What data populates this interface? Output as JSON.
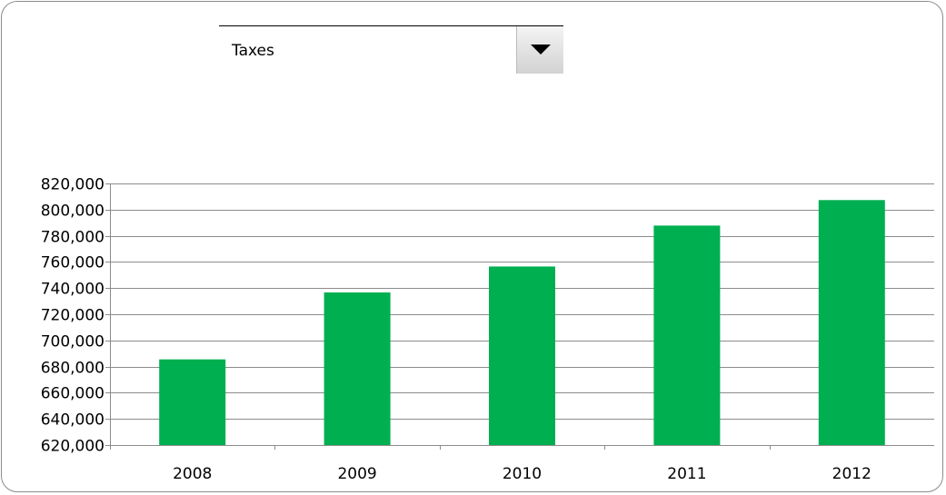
{
  "dropdown": {
    "selected": "Taxes",
    "arrow_icon": "triangle-down-icon"
  },
  "colors": {
    "bar": "#00AF50",
    "gridline": "#8c8c8c",
    "axis": "#8c8c8c"
  },
  "chart_data": {
    "type": "bar",
    "categories": [
      "2008",
      "2009",
      "2010",
      "2011",
      "2012"
    ],
    "values": [
      685500,
      736700,
      756500,
      787800,
      807300
    ],
    "title": "",
    "xlabel": "",
    "ylabel": "",
    "ylim": [
      620000,
      820000
    ],
    "yticks": [
      620000,
      640000,
      660000,
      680000,
      700000,
      720000,
      740000,
      760000,
      780000,
      800000,
      820000
    ],
    "ytick_labels": [
      "620,000",
      "640,000",
      "660,000",
      "680,000",
      "700,000",
      "720,000",
      "740,000",
      "760,000",
      "780,000",
      "800,000",
      "820,000"
    ],
    "grid": true,
    "legend": "none"
  }
}
